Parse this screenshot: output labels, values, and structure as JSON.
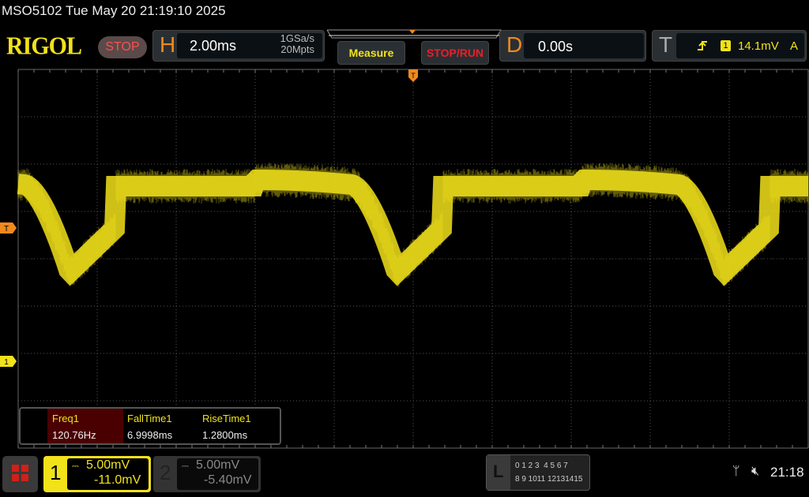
{
  "title": "MSO5102  Tue May 20 21:19:10 2025",
  "logo": "RIGOL",
  "run_state": "STOP",
  "horizontal": {
    "letter": "H",
    "timebase": "2.00ms",
    "sample_rate": "1GSa/s",
    "memory_depth": "20Mpts"
  },
  "buttons": {
    "measure": "Measure",
    "stop_run": "STOP/RUN"
  },
  "delay": {
    "letter": "D",
    "value": "0.00s"
  },
  "trigger": {
    "letter": "T",
    "source": "1",
    "level": "14.1mV",
    "mode": "A",
    "slope_icon": "rising-edge-icon"
  },
  "markers": {
    "trigger_level": "T",
    "channel1": "1"
  },
  "measurements": [
    {
      "label": "Freq1",
      "value": "120.76Hz"
    },
    {
      "label": "FallTime1",
      "value": "6.9998ms"
    },
    {
      "label": "RiseTime1",
      "value": "1.2800ms"
    }
  ],
  "channels": [
    {
      "num": "1",
      "scale": "5.00mV",
      "offset": "-11.0mV",
      "coupling_icon": "dc-coupling-icon",
      "color": "#f2e21a"
    },
    {
      "num": "2",
      "scale": "5.00mV",
      "offset": "-5.40mV",
      "coupling_icon": "dc-coupling-icon",
      "color": "#888888"
    }
  ],
  "logic": {
    "letter": "L",
    "row1": "0 1 2 3  4 5 6 7",
    "row2": "8 9 1011 12131415"
  },
  "status": {
    "clock": "21:18",
    "usb_icon": "usb-icon",
    "sound_icon": "mute-icon"
  },
  "colors": {
    "trace": "#f2e21a",
    "accent": "#f08a1c",
    "stop": "#e8202a"
  }
}
